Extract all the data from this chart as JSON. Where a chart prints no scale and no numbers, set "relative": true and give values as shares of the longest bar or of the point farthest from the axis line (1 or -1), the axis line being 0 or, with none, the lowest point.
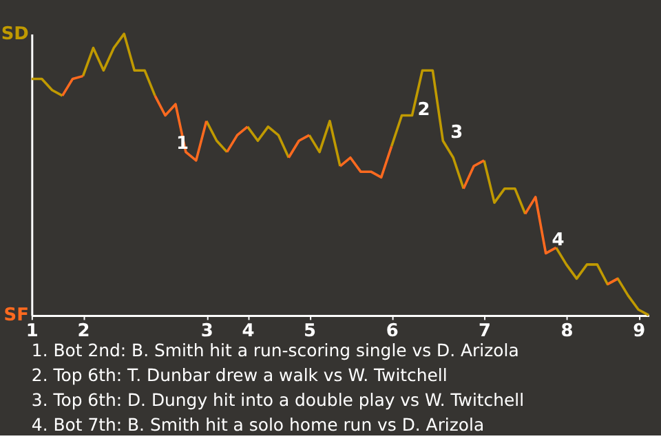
{
  "chart_data": {
    "type": "line",
    "relative": true,
    "categories": [
      "1",
      null,
      null,
      null,
      null,
      "2",
      null,
      null,
      null,
      null,
      null,
      null,
      null,
      null,
      null,
      null,
      null,
      "3",
      null,
      null,
      null,
      "4",
      null,
      null,
      null,
      null,
      null,
      "5",
      null,
      null,
      null,
      null,
      null,
      null,
      null,
      "6",
      null,
      null,
      null,
      null,
      null,
      null,
      null,
      null,
      "7",
      null,
      null,
      null,
      null,
      null,
      null,
      null,
      "8",
      null,
      null,
      null,
      null,
      null,
      null,
      "9",
      null
    ],
    "series": [
      {
        "color": "#c09a00",
        "values": [
          0.84,
          0.84,
          0.8,
          0.78,
          null,
          0.85,
          0.95,
          0.87,
          0.95,
          1,
          0.87,
          0.87,
          0.78,
          null,
          null,
          null,
          null,
          0.69,
          0.62,
          0.58,
          null,
          0.67,
          0.62,
          0.67,
          0.64,
          0.56,
          null,
          0.64,
          0.58,
          0.69,
          0.53,
          null,
          null,
          null,
          null,
          0.6,
          0.71,
          0.71,
          0.87,
          0.87,
          0.62,
          0.56,
          0.45,
          null,
          0.55,
          0.4,
          0.45,
          0.45,
          0.36,
          null,
          null,
          0.24,
          0.18,
          0.13,
          0.18,
          0.18,
          0.11,
          0.13,
          0.07,
          0.02,
          0
        ]
      },
      {
        "color": "#ff6a1f",
        "values": [
          null,
          null,
          null,
          0.78,
          0.84,
          0.85,
          null,
          null,
          null,
          null,
          null,
          null,
          0.78,
          0.71,
          0.75,
          0.58,
          0.55,
          0.69,
          null,
          0.58,
          0.64,
          0.67,
          null,
          null,
          null,
          0.56,
          0.62,
          0.64,
          null,
          null,
          0.53,
          0.56,
          0.51,
          0.51,
          0.49,
          0.6,
          null,
          null,
          null,
          null,
          null,
          null,
          0.45,
          0.53,
          0.55,
          null,
          null,
          null,
          0.36,
          0.42,
          0.22,
          0.24,
          null,
          null,
          null,
          null,
          0.11,
          0.13,
          null,
          null,
          null
        ]
      }
    ],
    "annotations": [
      "1",
      "2",
      "3",
      "4",
      "SD",
      "SF",
      "1. Bot 2nd: B. Smith hit a run-scoring single vs D. Arizola",
      "2. Top 6th: T. Dunbar drew a walk vs W. Twitchell",
      "3. Top 6th: D. Dungy hit into a double play vs W. Twitchell",
      "4. Bot 7th: B. Smith hit a solo home run vs D. Arizola"
    ]
  }
}
